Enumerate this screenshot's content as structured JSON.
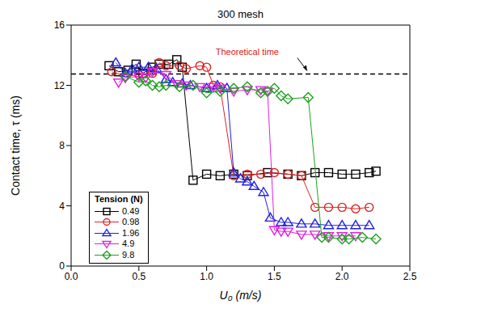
{
  "chart_data": {
    "type": "scatter",
    "title": "300 mesh",
    "x_label": "U₀ (m/s)",
    "y_label": "Contact time, τ (ms)",
    "xlim": [
      0,
      2.5
    ],
    "xticks": [
      {
        "value": 0,
        "label": "0.0"
      },
      0.5,
      {
        "value": 1,
        "label": "1.0"
      },
      1.5,
      {
        "value": 2,
        "label": "2.0"
      },
      2.5
    ],
    "ylim": [
      0,
      16
    ],
    "yticks": [
      0,
      4,
      8,
      12,
      16
    ],
    "grid": false,
    "legend": "lower left",
    "legend_title": "Tension (N)",
    "annotations": [
      {
        "text": "Theoretical time",
        "y": 12.75,
        "color": "#d62020",
        "line_style": "dashed"
      }
    ],
    "series": [
      {
        "name": "0.49",
        "color": "#000000",
        "marker": "square",
        "line_style": "solid",
        "x": [
          0.28,
          0.35,
          0.42,
          0.48,
          0.53,
          0.6,
          0.65,
          0.72,
          0.78,
          0.82,
          0.9,
          1.0,
          1.1,
          1.2,
          1.3,
          1.45,
          1.6,
          1.7,
          1.8,
          1.9,
          2.0,
          2.1,
          2.2,
          2.25
        ],
        "values": [
          13.3,
          12.9,
          13.0,
          13.4,
          12.8,
          13.2,
          13.4,
          13.4,
          13.7,
          13.2,
          5.7,
          6.1,
          6.0,
          6.1,
          6.0,
          6.2,
          6.1,
          6.0,
          6.2,
          6.2,
          6.1,
          6.1,
          6.2,
          6.3
        ]
      },
      {
        "name": "0.98",
        "color": "#e02020",
        "marker": "circle",
        "line_style": "solid",
        "x": [
          0.3,
          0.4,
          0.5,
          0.6,
          0.65,
          0.7,
          0.8,
          0.85,
          0.95,
          1.0,
          1.05,
          1.1,
          1.2,
          1.3,
          1.4,
          1.5,
          1.6,
          1.7,
          1.8,
          1.9,
          2.0,
          2.1,
          2.2
        ],
        "values": [
          12.9,
          12.6,
          12.7,
          12.8,
          13.5,
          13.3,
          13.3,
          13.1,
          13.3,
          13.2,
          12.0,
          11.9,
          6.0,
          6.1,
          6.1,
          6.2,
          6.1,
          6.0,
          3.9,
          3.9,
          3.9,
          3.8,
          3.9
        ]
      },
      {
        "name": "1.96",
        "color": "#2020e0",
        "marker": "triangle-up",
        "line_style": "solid",
        "x": [
          0.33,
          0.4,
          0.45,
          0.5,
          0.57,
          0.63,
          0.7,
          0.75,
          0.82,
          0.88,
          1.0,
          1.08,
          1.15,
          1.2,
          1.25,
          1.3,
          1.35,
          1.42,
          1.47,
          1.55,
          1.6,
          1.7,
          1.8,
          1.9,
          2.0,
          2.1,
          2.2
        ],
        "values": [
          13.5,
          12.8,
          13.1,
          13.2,
          13.2,
          13.1,
          12.4,
          12.2,
          12.1,
          12.0,
          11.8,
          12.0,
          11.8,
          6.2,
          5.8,
          5.6,
          5.3,
          4.9,
          3.2,
          2.9,
          2.9,
          2.8,
          2.8,
          2.7,
          2.7,
          2.7,
          2.7
        ]
      },
      {
        "name": "4.9",
        "color": "#e020e0",
        "marker": "triangle-down",
        "line_style": "solid",
        "x": [
          0.35,
          0.4,
          0.5,
          0.55,
          0.6,
          0.7,
          0.78,
          0.85,
          0.95,
          1.05,
          1.1,
          1.2,
          1.3,
          1.4,
          1.45,
          1.5,
          1.55,
          1.6,
          1.7,
          1.8,
          1.9,
          2.0,
          2.1
        ],
        "values": [
          12.2,
          12.5,
          12.6,
          12.5,
          12.9,
          12.7,
          12.1,
          12.0,
          11.9,
          11.9,
          11.8,
          11.6,
          11.7,
          11.7,
          11.6,
          2.4,
          2.3,
          2.3,
          2.1,
          2.1,
          2.0,
          2.0,
          2.0
        ]
      },
      {
        "name": "9.8",
        "color": "#20a020",
        "marker": "diamond",
        "line_style": "solid",
        "x": [
          0.4,
          0.5,
          0.55,
          0.6,
          0.65,
          0.7,
          0.8,
          0.9,
          1.0,
          1.1,
          1.2,
          1.3,
          1.4,
          1.45,
          1.5,
          1.55,
          1.6,
          1.75,
          1.85,
          1.9,
          2.0,
          2.05,
          2.15,
          2.25
        ],
        "values": [
          12.6,
          12.2,
          12.3,
          12.0,
          11.9,
          12.0,
          11.9,
          12.0,
          11.5,
          11.6,
          11.8,
          11.9,
          11.5,
          11.6,
          11.8,
          11.3,
          11.1,
          11.2,
          1.9,
          1.9,
          1.8,
          1.8,
          1.9,
          1.8
        ]
      }
    ]
  }
}
